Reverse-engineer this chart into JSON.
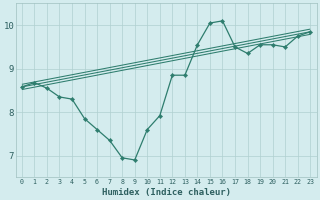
{
  "xlabel": "Humidex (Indice chaleur)",
  "bg_color": "#d4ecee",
  "line_color": "#2e7d6e",
  "grid_color": "#b0d0d0",
  "xlim": [
    -0.5,
    23.5
  ],
  "ylim": [
    6.5,
    10.5
  ],
  "yticks": [
    7,
    8,
    9,
    10
  ],
  "xticks": [
    0,
    1,
    2,
    3,
    4,
    5,
    6,
    7,
    8,
    9,
    10,
    11,
    12,
    13,
    14,
    15,
    16,
    17,
    18,
    19,
    20,
    21,
    22,
    23
  ],
  "line1_x": [
    0,
    1,
    2,
    3,
    4,
    5,
    6,
    7,
    8,
    9,
    10,
    11,
    12,
    13,
    14,
    15,
    16,
    17,
    18,
    19,
    20,
    21,
    22,
    23
  ],
  "line1_y": [
    8.58,
    8.68,
    8.55,
    8.35,
    8.3,
    7.85,
    7.6,
    7.35,
    6.95,
    6.9,
    7.6,
    7.92,
    8.85,
    8.85,
    9.55,
    10.05,
    10.1,
    9.5,
    9.35,
    9.55,
    9.55,
    9.5,
    9.75,
    9.85
  ],
  "trend_x": [
    0,
    23
  ],
  "trend_y_start": 8.58,
  "trend_y_end": 9.85,
  "trend_offsets": [
    -0.06,
    0.0,
    0.06
  ]
}
